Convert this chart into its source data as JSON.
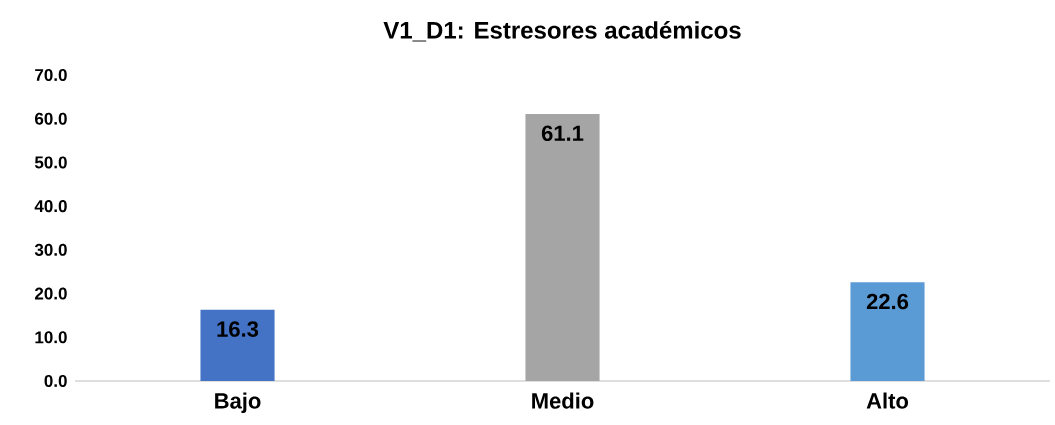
{
  "chart_data": {
    "type": "bar",
    "title": "V1_D1: Estresores académicos",
    "categories": [
      "Bajo",
      "Medio",
      "Alto"
    ],
    "values": [
      16.3,
      61.1,
      22.6
    ],
    "colors": [
      "#4472c4",
      "#a5a5a5",
      "#5b9bd5"
    ],
    "ylim": [
      0,
      70
    ],
    "yticks": [
      {
        "value": 0,
        "label": "0.0"
      },
      {
        "value": 10,
        "label": "10.0"
      },
      {
        "value": 20,
        "label": "20.0"
      },
      {
        "value": 30,
        "label": "30.0"
      },
      {
        "value": 40,
        "label": "40.0"
      },
      {
        "value": 50,
        "label": "50.0"
      },
      {
        "value": 60,
        "label": "60.0"
      },
      {
        "value": 70,
        "label": "70.0"
      }
    ],
    "data_labels": true
  }
}
